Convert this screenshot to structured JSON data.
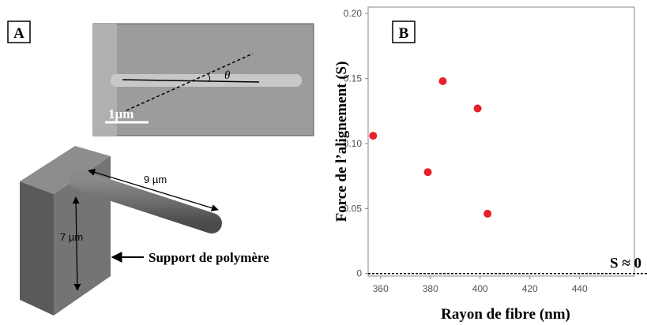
{
  "panel_a": {
    "label": "A",
    "angle_label": "θ",
    "scale_bar": "1µm",
    "length_label": "9 µm",
    "height_label": "7 µm",
    "support_label": "Support de polymère"
  },
  "chart_data": {
    "type": "scatter",
    "panel_label": "B",
    "x_label": "Rayon de fibre (nm)",
    "y_label": "Force de l’alignement (S)",
    "annotation": "S ≈ 0",
    "x": [
      357,
      379,
      385,
      399,
      403
    ],
    "values": [
      0.106,
      0.078,
      0.148,
      0.127,
      0.046
    ],
    "color": "#e8202a",
    "xlim": [
      355,
      462
    ],
    "ylim": [
      -0.002,
      0.205
    ],
    "xticks": [
      360,
      380,
      400,
      420,
      440
    ],
    "yticks": [
      {
        "value": 0.2,
        "label": "0.20"
      },
      0.15,
      {
        "value": 0.1,
        "label": "0.10"
      },
      0.05,
      0
    ],
    "grid": false
  }
}
